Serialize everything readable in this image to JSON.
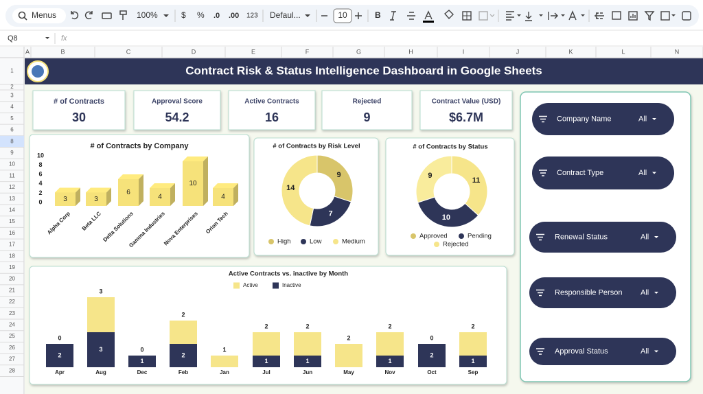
{
  "toolbar": {
    "search": "Menus",
    "zoom": "100%",
    "currency": "$",
    "percent": "%",
    "decrease_decimal": ".0",
    "increase_decimal": ".00",
    "number_format": "123",
    "font": "Defaul...",
    "font_size": "10",
    "bold": "B"
  },
  "formula_bar": {
    "cell": "Q8",
    "fx": "fx"
  },
  "columns": [
    "A",
    "B",
    "C",
    "D",
    "E",
    "F",
    "G",
    "H",
    "I",
    "J",
    "K",
    "L",
    "N"
  ],
  "rows": [
    1,
    2,
    3,
    4,
    5,
    6,
    8,
    9,
    10,
    11,
    12,
    13,
    14,
    15,
    16,
    17,
    18,
    19,
    20,
    21,
    22,
    23,
    24,
    25,
    26,
    27,
    28
  ],
  "selected_row": 8,
  "title": "Contract Risk & Status Intelligence Dashboard in Google Sheets",
  "kpis": [
    {
      "label": "# of Contracts",
      "value": "30"
    },
    {
      "label": "Approval Score",
      "value": "54.2"
    },
    {
      "label": "Active Contracts",
      "value": "16"
    },
    {
      "label": "Rejected",
      "value": "9"
    },
    {
      "label": "Contract Value (USD)",
      "value": "$6.7M"
    }
  ],
  "chart_data": [
    {
      "type": "bar",
      "title": "# of Contracts by Company",
      "categories": [
        "Alpha Corp",
        "Beta LLC",
        "Delta Solutions",
        "Gamma Industries",
        "Nova Enterprises",
        "Orion Tech"
      ],
      "values": [
        3,
        3,
        6,
        4,
        10,
        4
      ],
      "color": "#f6e27a",
      "ylim": [
        0,
        10
      ],
      "yticks": [
        0,
        2,
        4,
        6,
        8,
        10
      ]
    },
    {
      "type": "pie",
      "title": "# of Contracts by Risk Level",
      "categories": [
        "High",
        "Low",
        "Medium"
      ],
      "values": [
        9,
        7,
        14
      ],
      "colors": [
        "#d8c56a",
        "#2e3558",
        "#f6e58a"
      ]
    },
    {
      "type": "pie",
      "title": "# of Contracts by Status",
      "categories": [
        "Approved",
        "Pending",
        "Rejected"
      ],
      "values": [
        11,
        10,
        9
      ],
      "colors": [
        "#f6e58a",
        "#2e3558",
        "#f9ec9c"
      ],
      "legend_colors": [
        "#d8c56a",
        "#2e3558",
        "#f6e58a"
      ]
    },
    {
      "type": "stacked_bar",
      "title": "Active Contracts vs. inactive by Month",
      "categories": [
        "Apr",
        "Aug",
        "Dec",
        "Feb",
        "Jan",
        "Jul",
        "Jun",
        "May",
        "Nov",
        "Oct",
        "Sep"
      ],
      "series": [
        {
          "name": "Inactive",
          "color": "#2e3558",
          "values": [
            2,
            3,
            1,
            2,
            0,
            1,
            1,
            0,
            1,
            2,
            1
          ]
        },
        {
          "name": "Active",
          "color": "#f6e58a",
          "values": [
            0,
            3,
            0,
            2,
            1,
            2,
            2,
            2,
            2,
            0,
            2
          ]
        }
      ]
    }
  ],
  "slicers": [
    {
      "label": "Company Name",
      "value": "All"
    },
    {
      "label": "Contract Type",
      "value": "All"
    },
    {
      "label": "Renewal Status",
      "value": "All"
    },
    {
      "label": "Responsible Person",
      "value": "All"
    },
    {
      "label": "Approval Status",
      "value": "All"
    }
  ]
}
